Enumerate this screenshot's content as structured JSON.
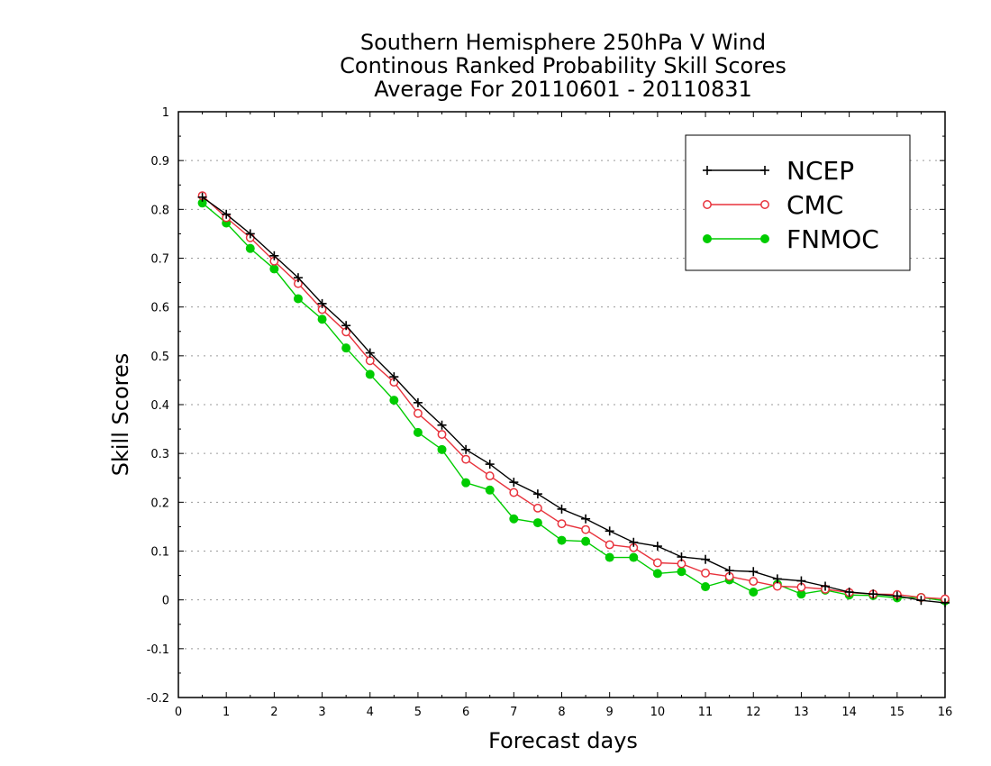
{
  "chart_data": {
    "type": "line",
    "title": [
      "Southern Hemisphere 250hPa V Wind",
      "Continous Ranked Probability Skill Scores",
      "Average For 20110601 - 20110831"
    ],
    "xlabel": "Forecast days",
    "ylabel": "Skill Scores",
    "xlim": [
      0,
      16
    ],
    "ylim": [
      -0.2,
      1
    ],
    "x_ticks": [
      0,
      1,
      2,
      3,
      4,
      5,
      6,
      7,
      8,
      9,
      10,
      11,
      12,
      13,
      14,
      15,
      16
    ],
    "y_ticks": [
      -0.2,
      -0.1,
      0,
      0.1,
      0.2,
      0.3,
      0.4,
      0.5,
      0.6,
      0.7,
      0.8,
      0.9,
      1
    ],
    "y_tick_labels": [
      "-0.2",
      "-0.1",
      "0",
      "0.1",
      "0.2",
      "0.3",
      "0.4",
      "0.5",
      "0.6",
      "0.7",
      "0.8",
      "0.9",
      "1"
    ],
    "grid": "dotted-horizontal",
    "legend_position": "top-right",
    "x": [
      0.5,
      1,
      1.5,
      2,
      2.5,
      3,
      3.5,
      4,
      4.5,
      5,
      5.5,
      6,
      6.5,
      7,
      7.5,
      8,
      8.5,
      9,
      9.5,
      10,
      10.5,
      11,
      11.5,
      12,
      12.5,
      13,
      13.5,
      14,
      14.5,
      15,
      15.5,
      16
    ],
    "series": [
      {
        "name": "NCEP",
        "color": "#000000",
        "marker": "plus",
        "values": [
          0.825,
          0.79,
          0.75,
          0.705,
          0.66,
          0.607,
          0.562,
          0.506,
          0.457,
          0.404,
          0.358,
          0.308,
          0.278,
          0.241,
          0.217,
          0.186,
          0.166,
          0.141,
          0.118,
          0.11,
          0.088,
          0.083,
          0.06,
          0.058,
          0.043,
          0.039,
          0.028,
          0.016,
          0.012,
          0.008,
          -0.001,
          -0.006
        ]
      },
      {
        "name": "CMC",
        "color": "#e8323c",
        "marker": "open-circle",
        "values": [
          0.828,
          0.783,
          0.742,
          0.694,
          0.648,
          0.595,
          0.549,
          0.49,
          0.446,
          0.382,
          0.339,
          0.288,
          0.254,
          0.22,
          0.188,
          0.156,
          0.144,
          0.113,
          0.107,
          0.076,
          0.074,
          0.055,
          0.048,
          0.038,
          0.028,
          0.026,
          0.022,
          0.015,
          0.012,
          0.011,
          0.005,
          0.002
        ]
      },
      {
        "name": "FNMOC",
        "color": "#00cc00",
        "marker": "filled-circle",
        "values": [
          0.813,
          0.772,
          0.72,
          0.678,
          0.617,
          0.575,
          0.516,
          0.462,
          0.409,
          0.343,
          0.308,
          0.24,
          0.225,
          0.166,
          0.158,
          0.122,
          0.12,
          0.087,
          0.087,
          0.054,
          0.058,
          0.027,
          0.041,
          0.016,
          0.032,
          0.012,
          0.02,
          0.01,
          0.009,
          0.004,
          0.005,
          -0.002
        ]
      }
    ]
  }
}
